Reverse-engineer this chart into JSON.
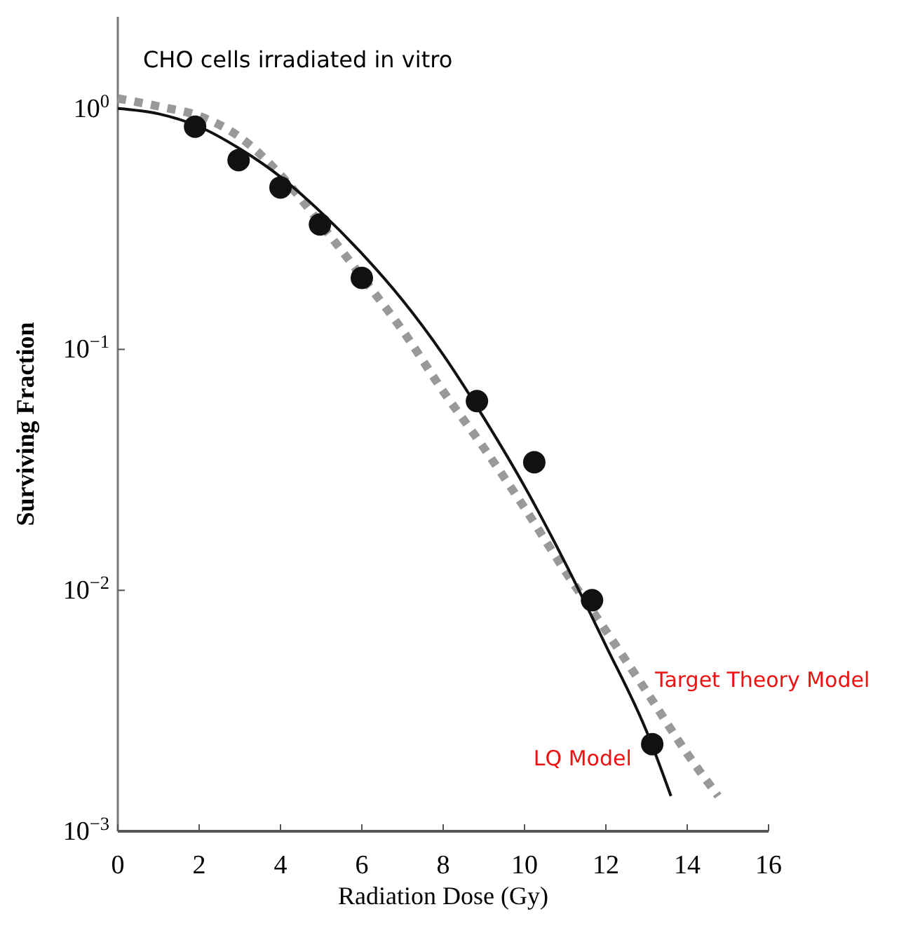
{
  "chart_data": {
    "type": "scatter",
    "title": "CHO cells irradiated in vitro",
    "xlabel": "Radiation Dose (Gy)",
    "ylabel": "Surviving Fraction",
    "log": "y",
    "grid": false,
    "xlim": [
      0,
      16
    ],
    "xticks": [
      0,
      2,
      4,
      6,
      8,
      10,
      12,
      14,
      16
    ],
    "ylim": [
      0.001,
      2.4
    ],
    "yticks": [
      {
        "value": 1,
        "label": "10$^{0}$"
      },
      {
        "value": 0.1,
        "label": "10$^{−1}$"
      },
      {
        "value": 0.01,
        "label": "10$^{−2}$"
      },
      {
        "value": 0.001,
        "label": "10$^{−3}$"
      }
    ],
    "series": [
      {
        "type": "line",
        "name": "Target Theory Model",
        "color": "#999999",
        "line_style": "dotted",
        "marker": "none",
        "x": [
          0,
          1,
          2,
          3,
          4,
          5,
          6,
          7,
          8,
          9,
          10,
          11,
          12,
          13,
          14,
          14.76
        ],
        "values": [
          1.1,
          1.02,
          0.93,
          0.76,
          0.53,
          0.33,
          0.2,
          0.12,
          0.067,
          0.039,
          0.022,
          0.012,
          0.0068,
          0.0038,
          0.0021,
          0.0014
        ]
      },
      {
        "type": "line",
        "name": "LQ Model",
        "color": "#111111",
        "line_style": "solid",
        "marker": "none",
        "x": [
          0,
          1,
          2,
          3,
          4,
          5,
          6,
          7,
          8,
          9,
          10,
          11,
          12,
          13,
          13.6
        ],
        "values": [
          1.0,
          0.95,
          0.84,
          0.68,
          0.52,
          0.37,
          0.25,
          0.16,
          0.095,
          0.052,
          0.027,
          0.013,
          0.0059,
          0.0026,
          0.0014
        ]
      },
      {
        "color": "#111111",
        "marker": "circle",
        "x": [
          1.9,
          2.97,
          4.0,
          4.97,
          6.0,
          8.83,
          10.24,
          11.66,
          13.14
        ],
        "values": [
          0.84,
          0.61,
          0.47,
          0.33,
          0.198,
          0.061,
          0.034,
          0.0091,
          0.0023
        ]
      }
    ]
  }
}
